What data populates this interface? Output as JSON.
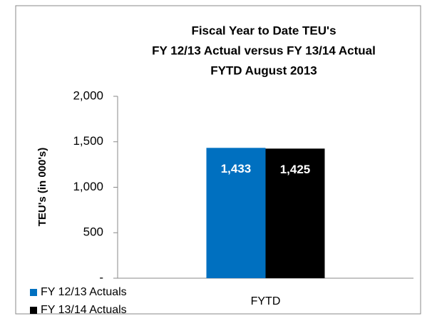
{
  "chart_data": {
    "type": "bar",
    "title": [
      "Fiscal Year to Date TEU's",
      "FY 12/13 Actual versus FY 13/14 Actual",
      "FYTD August 2013"
    ],
    "y_label": "TEU's (in 000's)",
    "categories": [
      "FYTD"
    ],
    "series": [
      {
        "name": "FY 12/13 Actuals",
        "color": "#0070c0",
        "values": [
          1433
        ],
        "value_labels": [
          "1,433"
        ]
      },
      {
        "name": "FY 13/14 Actuals",
        "color": "#000000",
        "values": [
          1425
        ],
        "value_labels": [
          "1,425"
        ]
      }
    ],
    "ylim": [
      0,
      2000
    ],
    "yticks": [
      {
        "value": 0,
        "label": "-"
      },
      500,
      {
        "value": 1000,
        "label": "1,000"
      },
      {
        "value": 1500,
        "label": "1,500"
      },
      {
        "value": 2000,
        "label": "2,000"
      }
    ],
    "grid": false,
    "legend": "bottom-left"
  }
}
